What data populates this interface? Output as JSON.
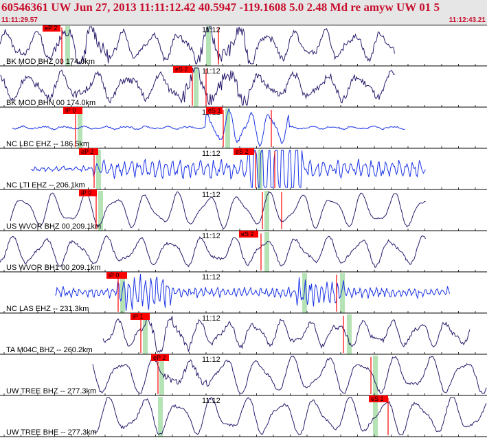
{
  "header": {
    "title": "60546361 UW Jun 27, 2013 11:11:12.42    40.5947 -119.1608  5.0 2.48 Md re amyw UW 01    5",
    "start_time": "11:11:29.57",
    "end_time": "11:12:43.21"
  },
  "colors": {
    "header_text": "#c8102e",
    "header_bg": "#e6e6e6",
    "velocity_trace": "#2a1a6b",
    "short_period_trace": "#1a33e6",
    "pick_flag": "#ff0000",
    "pick_window": "#b5e3b5"
  },
  "time_tick_label": "11:12",
  "traces": [
    {
      "label": "BK MOD BHZ 00 174.0km",
      "color": "velocity",
      "picks": [
        {
          "name": "eP 2"
        }
      ]
    },
    {
      "label": "BK MOD BHN 00 174.0km",
      "color": "velocity",
      "picks": [
        {
          "name": "eS 2"
        }
      ]
    },
    {
      "label": "NC LBC EHZ -- 186.5km",
      "color": "short",
      "picks": [
        {
          "name": "iP 0"
        },
        {
          "name": "eS 1"
        }
      ]
    },
    {
      "label": "NC LTI EHZ -- 206.1km",
      "color": "short",
      "picks": [
        {
          "name": "eP 2"
        },
        {
          "name": "eS 2"
        }
      ]
    },
    {
      "label": "US WVOR BHZ 00 209.1km",
      "color": "velocity",
      "picks": [
        {
          "name": "iP 0"
        }
      ]
    },
    {
      "label": "US WVOR BH1 00 209.1km",
      "color": "velocity",
      "picks": [
        {
          "name": "eS 2"
        }
      ]
    },
    {
      "label": "NC LAS EHZ -- 231.3km",
      "color": "short",
      "picks": [
        {
          "name": "iP 0"
        }
      ]
    },
    {
      "label": "TA M04C BHZ -- 260.2km",
      "color": "velocity",
      "picks": [
        {
          "name": "iP 1"
        }
      ]
    },
    {
      "label": "UW TREE BHZ -- 277.3km",
      "color": "velocity",
      "picks": [
        {
          "name": "eP 2"
        }
      ]
    },
    {
      "label": "UW TREE BHE -- 277.3km",
      "color": "velocity",
      "picks": [
        {
          "name": "eS 1"
        }
      ]
    }
  ]
}
